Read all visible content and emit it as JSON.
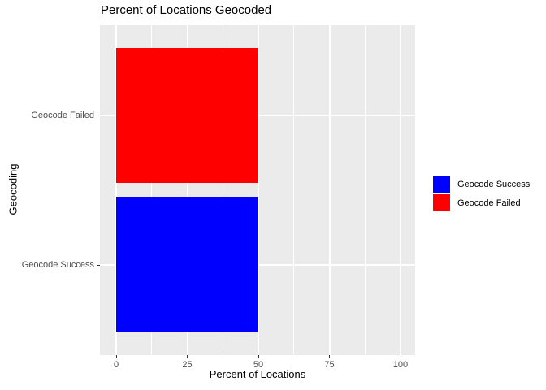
{
  "title": "Percent of Locations Geocoded",
  "chart_data": {
    "type": "bar",
    "orientation": "horizontal",
    "title": "Percent of Locations Geocoded",
    "xlabel": "Percent of Locations",
    "ylabel": "Geocoding",
    "categories": [
      "Geocode Failed",
      "Geocode Success"
    ],
    "values": [
      50,
      50
    ],
    "bar_colors": [
      "#FF0000",
      "#0000FF"
    ],
    "xlim": [
      0,
      100
    ],
    "x_major_ticks": [
      0,
      25,
      50,
      75,
      100
    ],
    "x_tick_labels": [
      "0",
      "25",
      "50",
      "75",
      "100"
    ],
    "x_minor_ticks": [
      12.5,
      37.5,
      62.5,
      87.5
    ],
    "grid": true,
    "panel_bg": "#EBEBEB",
    "gridline_color": "#FFFFFF",
    "tick_color": "#333333",
    "tick_label_color": "#4D4D4D",
    "legend": {
      "position": "right",
      "entries": [
        {
          "label": "Geocode Success",
          "color": "#0000FF"
        },
        {
          "label": "Geocode Failed",
          "color": "#FF0000"
        }
      ]
    }
  }
}
